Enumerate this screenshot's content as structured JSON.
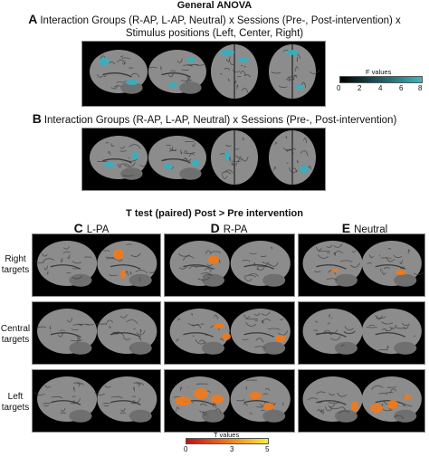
{
  "anova": {
    "title": "General ANOVA",
    "panel_a": {
      "letter": "A",
      "caption": "Interaction Groups (R-AP, L-AP, Neutral) x Sessions (Pre-, Post-intervention) x Stimulus positions (Left, Center, Right)"
    },
    "panel_b": {
      "letter": "B",
      "caption": "Interaction Groups (R-AP, L-AP, Neutral) x Sessions (Pre-, Post-intervention)"
    },
    "colorbar": {
      "label": "F values",
      "ticks": [
        "0",
        "2",
        "4",
        "6",
        "8"
      ],
      "color_low": "#000000",
      "color_high": "#3ab7c4"
    }
  },
  "ttest": {
    "title": "T test (paired) Post > Pre intervention",
    "columns": [
      {
        "letter": "C",
        "label": "L-PA"
      },
      {
        "letter": "D",
        "label": "R-PA"
      },
      {
        "letter": "E",
        "label": "Neutral"
      }
    ],
    "rows": [
      {
        "line1": "Right",
        "line2": "targets"
      },
      {
        "line1": "Central",
        "line2": "targets"
      },
      {
        "line1": "Left",
        "line2": "targets"
      }
    ],
    "colorbar": {
      "label": "T values",
      "ticks": [
        "0",
        "3",
        "5"
      ],
      "color_low": "#c0101a",
      "color_mid": "#f07818",
      "color_high": "#f6ee3a"
    }
  },
  "colors": {
    "brain": "#8c8c8c",
    "sulci": "#3a3a3a",
    "anova_activation": "#35b0bf",
    "ttest_activation": "#f07a1a"
  }
}
